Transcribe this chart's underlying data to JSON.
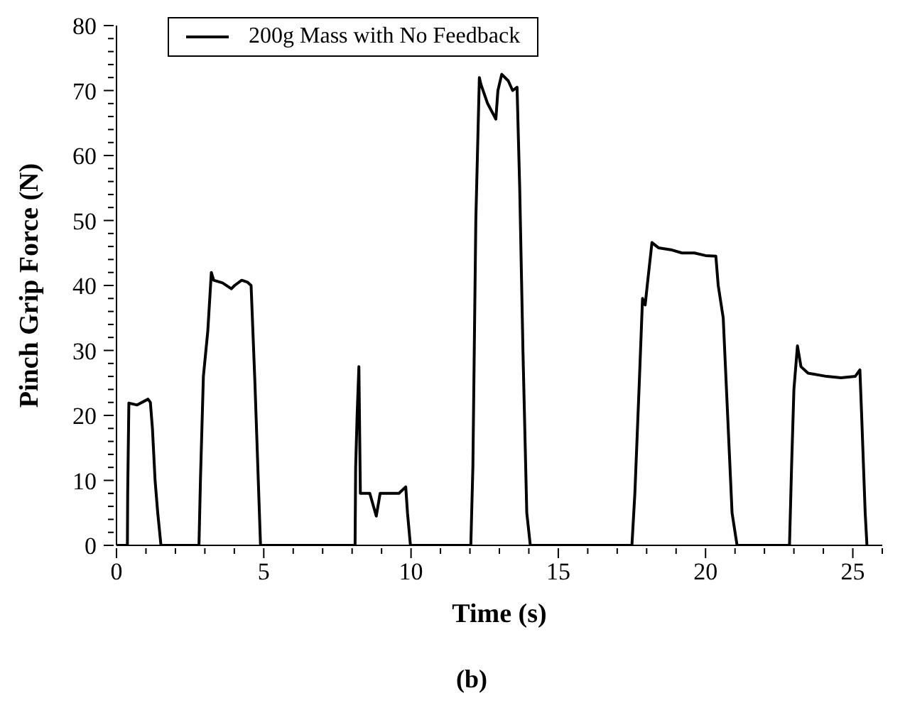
{
  "chart_data": {
    "type": "line",
    "xlabel": "Time (s)",
    "ylabel": "Pinch Grip Force (N)",
    "xlim": [
      0,
      26
    ],
    "xticks": [
      0,
      {
        "value": 1,
        "label": null
      },
      {
        "value": 2,
        "label": null
      },
      {
        "value": 3,
        "label": null
      },
      {
        "value": 4,
        "label": null
      },
      5,
      {
        "value": 6,
        "label": null
      },
      {
        "value": 7,
        "label": null
      },
      {
        "value": 8,
        "label": null
      },
      {
        "value": 9,
        "label": null
      },
      10,
      {
        "value": 11,
        "label": null
      },
      {
        "value": 12,
        "label": null
      },
      {
        "value": 13,
        "label": null
      },
      {
        "value": 14,
        "label": null
      },
      15,
      {
        "value": 16,
        "label": null
      },
      {
        "value": 17,
        "label": null
      },
      {
        "value": 18,
        "label": null
      },
      {
        "value": 19,
        "label": null
      },
      20,
      {
        "value": 21,
        "label": null
      },
      {
        "value": 22,
        "label": null
      },
      {
        "value": 23,
        "label": null
      },
      {
        "value": 24,
        "label": null
      },
      25,
      {
        "value": 26,
        "label": null
      }
    ],
    "ylim": [
      0,
      80
    ],
    "yticks": [
      0,
      {
        "value": 2,
        "label": null
      },
      {
        "value": 4,
        "label": null
      },
      {
        "value": 6,
        "label": null
      },
      {
        "value": 8,
        "label": null
      },
      10,
      {
        "value": 12,
        "label": null
      },
      {
        "value": 14,
        "label": null
      },
      {
        "value": 16,
        "label": null
      },
      {
        "value": 18,
        "label": null
      },
      20,
      {
        "value": 22,
        "label": null
      },
      {
        "value": 24,
        "label": null
      },
      {
        "value": 26,
        "label": null
      },
      {
        "value": 28,
        "label": null
      },
      30,
      {
        "value": 32,
        "label": null
      },
      {
        "value": 34,
        "label": null
      },
      {
        "value": 36,
        "label": null
      },
      {
        "value": 38,
        "label": null
      },
      40,
      {
        "value": 42,
        "label": null
      },
      {
        "value": 44,
        "label": null
      },
      {
        "value": 46,
        "label": null
      },
      {
        "value": 48,
        "label": null
      },
      50,
      {
        "value": 52,
        "label": null
      },
      {
        "value": 54,
        "label": null
      },
      {
        "value": 56,
        "label": null
      },
      {
        "value": 58,
        "label": null
      },
      60,
      {
        "value": 62,
        "label": null
      },
      {
        "value": 64,
        "label": null
      },
      {
        "value": 66,
        "label": null
      },
      {
        "value": 68,
        "label": null
      },
      70,
      {
        "value": 72,
        "label": null
      },
      {
        "value": 74,
        "label": null
      },
      {
        "value": 76,
        "label": null
      },
      {
        "value": 78,
        "label": null
      },
      80
    ],
    "legend": "top left",
    "grid": false,
    "marker": "none",
    "line_style": "solid",
    "annotations": [
      "(b)"
    ],
    "series": [
      {
        "name": "200g Mass with No Feedback",
        "color": "#000000",
        "x": [
          0,
          0.37,
          0.38,
          0.42,
          0.7,
          1.07,
          1.15,
          1.22,
          1.31,
          1.4,
          1.51,
          2.8,
          2.85,
          2.95,
          3.1,
          3.22,
          3.3,
          3.6,
          3.9,
          4.01,
          4.25,
          4.45,
          4.57,
          4.7,
          4.89,
          8.1,
          8.12,
          8.17,
          8.23,
          8.28,
          8.34,
          8.6,
          8.82,
          8.95,
          9.3,
          9.59,
          9.82,
          9.88,
          9.98,
          12.03,
          12.1,
          12.2,
          12.32,
          12.37,
          12.6,
          12.88,
          12.95,
          13.08,
          13.3,
          13.45,
          13.6,
          13.69,
          13.8,
          13.93,
          14.05,
          17.5,
          17.6,
          17.75,
          17.86,
          17.95,
          18.02,
          18.18,
          18.4,
          18.82,
          19.2,
          19.62,
          20.0,
          20.35,
          20.43,
          20.6,
          20.9,
          21.07,
          22.85,
          22.92,
          23.0,
          23.12,
          23.24,
          23.48,
          24.12,
          24.6,
          25.08,
          25.24,
          25.3,
          25.42,
          25.48
        ],
        "values": [
          0,
          0,
          8,
          21.9,
          21.6,
          22.5,
          22,
          18,
          10,
          5,
          0,
          0,
          10,
          26,
          33,
          42,
          40.8,
          40.4,
          39.5,
          40,
          40.8,
          40.5,
          40,
          25,
          0,
          0,
          12,
          20,
          27.5,
          8,
          8,
          8,
          4.5,
          8,
          8,
          8,
          9,
          5,
          0,
          0,
          12,
          50,
          72,
          71,
          68,
          65.6,
          70,
          72.5,
          71.5,
          70,
          70.5,
          55,
          30,
          5,
          0,
          0,
          8,
          25,
          38,
          37,
          40,
          46.6,
          45.8,
          45.5,
          45,
          45,
          44.6,
          44.5,
          40,
          35,
          5,
          0,
          0,
          12,
          24,
          30.7,
          27.5,
          26.5,
          26,
          25.8,
          26,
          27,
          20,
          5,
          0
        ]
      }
    ]
  }
}
